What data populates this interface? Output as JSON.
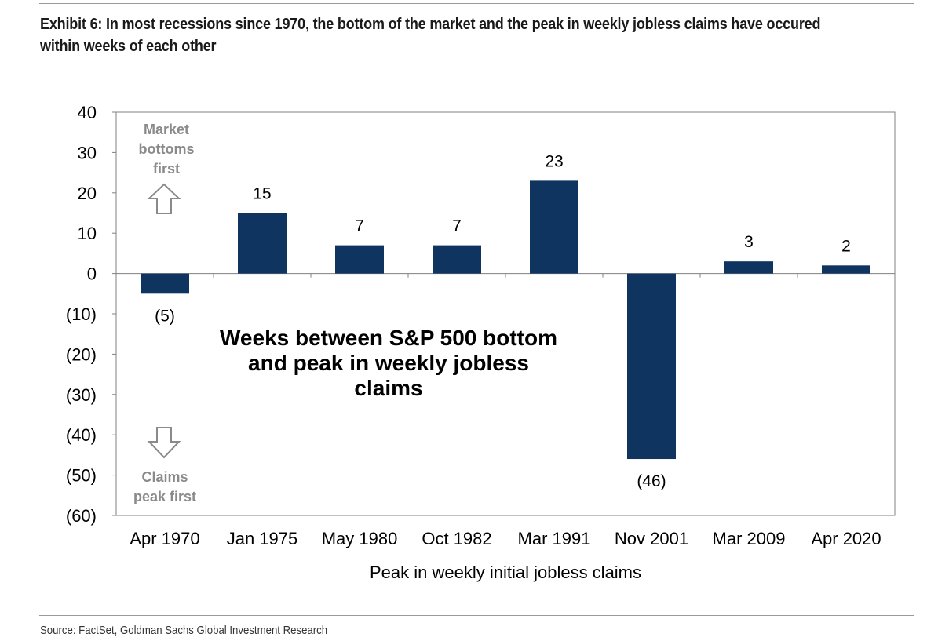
{
  "title": "Exhibit 6: In most recessions since 1970, the bottom of the market and the peak in weekly jobless claims have occured within weeks of each other",
  "source": "Source: FactSet, Goldman Sachs Global Investment Research",
  "chart_data": {
    "type": "bar",
    "categories": [
      "Apr 1970",
      "Jan 1975",
      "May 1980",
      "Oct 1982",
      "Mar 1991",
      "Nov 2001",
      "Mar 2009",
      "Apr 2020"
    ],
    "values": [
      -5,
      15,
      7,
      7,
      23,
      -46,
      3,
      2
    ],
    "data_labels": [
      "(5)",
      "15",
      "7",
      "7",
      "23",
      "(46)",
      "3",
      "2"
    ],
    "xlabel": "Peak in weekly initial jobless claims",
    "ylabel": "",
    "ylim": [
      -60,
      40
    ],
    "yticks": [
      40,
      30,
      20,
      10,
      0,
      -10,
      -20,
      -30,
      -40,
      -50,
      -60
    ],
    "ytick_labels": [
      "40",
      "30",
      "20",
      "10",
      "0",
      "(10)",
      "(20)",
      "(30)",
      "(40)",
      "(50)",
      "(60)"
    ],
    "bar_color": "#0f3460",
    "grid": false,
    "annotation_main": [
      "Weeks between S&P 500  bottom",
      "and peak in weekly jobless",
      "claims"
    ],
    "annotation_up": [
      "Market",
      "bottoms",
      "first"
    ],
    "annotation_down": [
      "Claims",
      "peak first"
    ]
  }
}
